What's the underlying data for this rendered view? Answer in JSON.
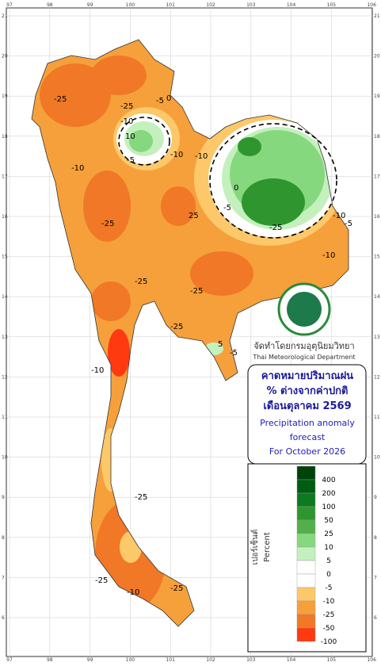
{
  "map": {
    "lon_ticks": [
      97,
      98,
      99,
      100,
      101,
      102,
      103,
      104,
      105,
      106
    ],
    "lat_ticks": [
      6,
      7,
      8,
      9,
      10,
      11,
      12,
      13,
      14,
      15,
      16,
      17,
      18,
      19,
      20,
      21
    ],
    "contour_labels": [
      -25,
      -25,
      -5,
      -10,
      0,
      -5,
      -10,
      10,
      -10,
      -25,
      -25,
      25,
      -10,
      -5,
      0,
      -10,
      -25,
      -25,
      -10,
      -25,
      -25,
      -10,
      -25,
      -5,
      -10,
      -25,
      5,
      -5
    ],
    "department": {
      "th": "จัดทำโดยกรมอุตุนิยมวิทยา",
      "en": "Thai Meteorological Department"
    },
    "title": {
      "th": [
        "คาดหมายปริมาณฝน",
        "% ต่างจากค่าปกติ",
        "เดือนตุลาคม 2569"
      ],
      "en": [
        "Precipitation anomaly",
        "forecast",
        "For October 2026"
      ]
    },
    "legend": {
      "title_th": "เปอร์เซ็นต์",
      "title_en": "Percent",
      "levels": [
        400,
        200,
        100,
        50,
        25,
        10,
        5,
        0,
        -5,
        -10,
        -25,
        -50,
        -100
      ],
      "colors": [
        "#00420a",
        "#005c12",
        "#0d7a1f",
        "#2f962f",
        "#52b04a",
        "#86d87e",
        "#c4f0bd",
        "#ffffff",
        "#ffffff",
        "#fcc86a",
        "#f6a03c",
        "#f07826",
        "#ff3a10"
      ]
    }
  }
}
